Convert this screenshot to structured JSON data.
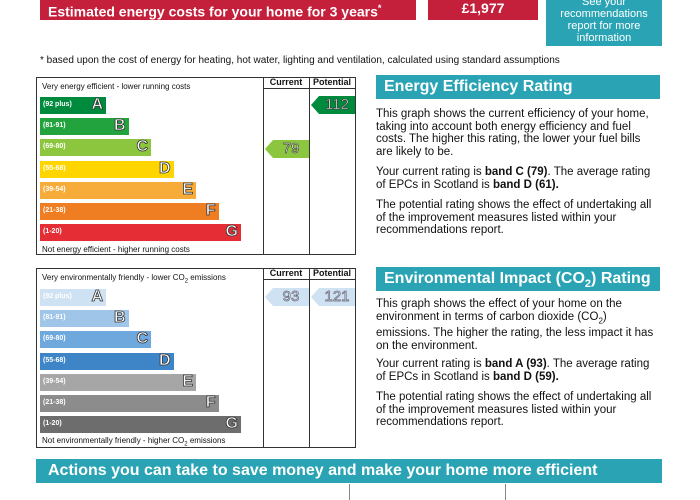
{
  "banner": {
    "title": "Estimated energy costs for your home for 3 years",
    "title_mark": "*",
    "cost": "£1,977",
    "recs_lines": [
      "See your",
      "recommendations",
      "report for more",
      "information"
    ]
  },
  "footnote": "* based upon the cost of energy for heating, hot water, lighting and ventilation, calculated using standard assumptions",
  "energy_chart": {
    "col_current": "Current",
    "col_potential": "Potential",
    "top_note": "Very energy efficient - lower running costs",
    "bottom_note": "Not energy efficient - higher running costs",
    "bands": [
      {
        "range": "(92 plus)",
        "letter": "A",
        "color": "#008a3e"
      },
      {
        "range": "(81-91)",
        "letter": "B",
        "color": "#23a33e"
      },
      {
        "range": "(69-80)",
        "letter": "C",
        "color": "#8cc63e"
      },
      {
        "range": "(55-68)",
        "letter": "D",
        "color": "#ffd500"
      },
      {
        "range": "(39-54)",
        "letter": "E",
        "color": "#f7ab38"
      },
      {
        "range": "(21-38)",
        "letter": "F",
        "color": "#ef7d22"
      },
      {
        "range": "(1-20)",
        "letter": "G",
        "color": "#e52d36"
      }
    ],
    "current": {
      "value": "79",
      "band_index": 2,
      "color": "#8cc63e"
    },
    "potential": {
      "value": "112",
      "band_index": 0,
      "color": "#008a3e"
    }
  },
  "env_chart": {
    "col_current": "Current",
    "col_potential": "Potential",
    "top_note_pre": "Very environmentally friendly - lower CO",
    "top_note_sub": "2",
    "top_note_post": " emissions",
    "bottom_note_pre": "Not environmentally friendly - higher CO",
    "bottom_note_sub": "2",
    "bottom_note_post": " emissions",
    "bands": [
      {
        "range": "(92 plus)",
        "letter": "A",
        "color": "#cfe2f3"
      },
      {
        "range": "(81-91)",
        "letter": "B",
        "color": "#9fc5e8"
      },
      {
        "range": "(69-80)",
        "letter": "C",
        "color": "#6fa8dc"
      },
      {
        "range": "(55-68)",
        "letter": "D",
        "color": "#3d85c6"
      },
      {
        "range": "(39-54)",
        "letter": "E",
        "color": "#a6a6a6"
      },
      {
        "range": "(21-38)",
        "letter": "F",
        "color": "#8c8c8c"
      },
      {
        "range": "(1-20)",
        "letter": "G",
        "color": "#6d6d6d"
      }
    ],
    "current": {
      "value": "93",
      "band_index": 0,
      "color": "#cfe2f3"
    },
    "potential": {
      "value": "121",
      "band_index": 0,
      "color": "#cfe2f3"
    }
  },
  "eer_panel": {
    "heading": "Energy Efficiency Rating",
    "p1": "This graph shows the current efficiency of your home, taking into account both energy efficiency and fuel costs. The higher this rating, the lower your fuel bills are likely to be.",
    "p2_pre": "Your current rating is ",
    "p2_bold1": "band C (79)",
    "p2_mid": ". The average rating of EPCs in Scotland is ",
    "p2_bold2": "band D (61).",
    "p3": "The potential rating shows the effect of undertaking all of the improvement measures listed within your recommendations report."
  },
  "eir_panel": {
    "heading_pre": "Environmental Impact (CO",
    "heading_sub": "2",
    "heading_post": ") Rating",
    "p1_pre": "This graph shows the effect of your home on the environment in terms of carbon dioxide (CO",
    "p1_sub": "2",
    "p1_post": ") emissions. The higher the rating, the less impact it has on the environment.",
    "p2_pre": "Your current rating is ",
    "p2_bold1": "band A (93)",
    "p2_mid": ". The average rating of EPCs in Scotland is ",
    "p2_bold2": "band D (59).",
    "p3": "The potential rating shows the effect of undertaking all of the improvement measures listed within your recommendations report."
  },
  "actions": {
    "heading": "Actions you can take to save money and make your home more efficient"
  }
}
